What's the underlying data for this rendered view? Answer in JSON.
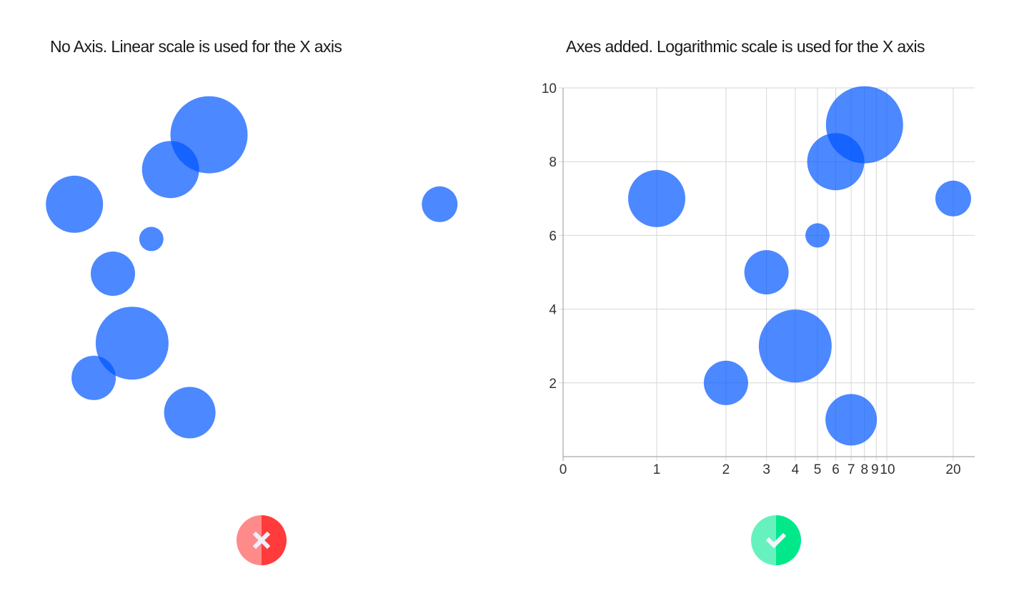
{
  "left_panel": {
    "title": "No Axis. Linear scale is used for the X axis",
    "verdict": "bad",
    "verdict_icon": "cross-icon",
    "verdict_colors": {
      "light": "#FF8A8A",
      "dark": "#FF3B3B"
    }
  },
  "right_panel": {
    "title": "Axes added. Logarithmic scale is used for the X axis",
    "verdict": "good",
    "verdict_icon": "check-icon",
    "verdict_colors": {
      "light": "#66F2BE",
      "dark": "#00E88A"
    }
  },
  "bubble_color": "#0055FF",
  "bubble_opacity": 0.7,
  "chart_data": [
    {
      "type": "scatter",
      "subtype": "bubble",
      "title": "No Axis. Linear scale is used for the X axis",
      "xscale": "linear",
      "axes_visible": false,
      "grid": false,
      "points": [
        {
          "x": 1,
          "y": 7,
          "size": 40
        },
        {
          "x": 2,
          "y": 2,
          "size": 31
        },
        {
          "x": 3,
          "y": 5,
          "size": 31
        },
        {
          "x": 4,
          "y": 3,
          "size": 51
        },
        {
          "x": 5,
          "y": 6,
          "size": 17
        },
        {
          "x": 6,
          "y": 8,
          "size": 40
        },
        {
          "x": 7,
          "y": 1,
          "size": 36
        },
        {
          "x": 8,
          "y": 9,
          "size": 54
        },
        {
          "x": 20,
          "y": 7,
          "size": 25
        }
      ]
    },
    {
      "type": "scatter",
      "subtype": "bubble",
      "title": "Axes added. Logarithmic scale is used for the X axis",
      "xscale": "log",
      "axes_visible": true,
      "grid": true,
      "xlim": [
        0,
        20
      ],
      "ylim": [
        0,
        10
      ],
      "xticks": [
        "0",
        "1",
        "2",
        "3",
        "4",
        "5",
        "6",
        "7",
        "8",
        "9",
        "10",
        "20"
      ],
      "yticks": [
        "2",
        "4",
        "6",
        "8",
        "10"
      ],
      "xlabel": "",
      "ylabel": "",
      "points": [
        {
          "x": 1,
          "y": 7,
          "size": 40
        },
        {
          "x": 2,
          "y": 2,
          "size": 31
        },
        {
          "x": 3,
          "y": 5,
          "size": 31
        },
        {
          "x": 4,
          "y": 3,
          "size": 51
        },
        {
          "x": 5,
          "y": 6,
          "size": 17
        },
        {
          "x": 6,
          "y": 8,
          "size": 40
        },
        {
          "x": 7,
          "y": 1,
          "size": 36
        },
        {
          "x": 8,
          "y": 9,
          "size": 54
        },
        {
          "x": 20,
          "y": 7,
          "size": 25
        }
      ]
    }
  ]
}
